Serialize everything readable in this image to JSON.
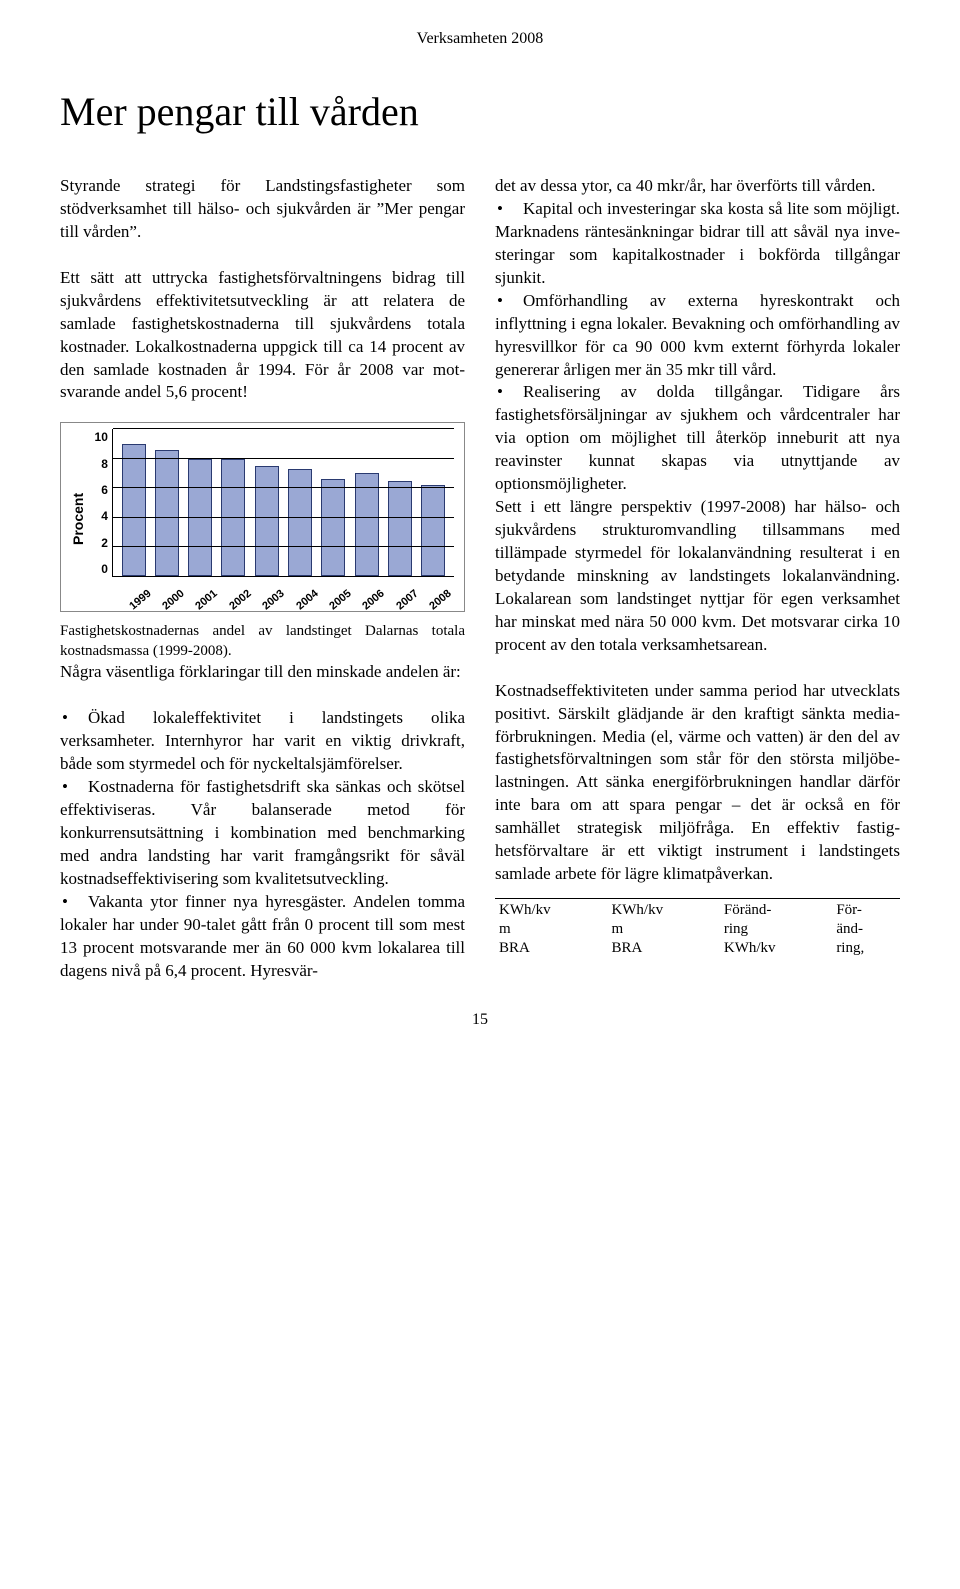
{
  "header": "Verksamheten 2008",
  "title": "Mer pengar till vården",
  "page_number": "15",
  "left": {
    "p1": "Styrande strategi för Landstingsfastighe­ter som stödverksamhet till hälso- och sjukvården är ”Mer pengar till vården”.",
    "p2": "Ett sätt att uttrycka fastighetsförvalt­ningens bidrag till sjukvårdens effektivi­tetsutveckling är att relatera de samlade fastighetskostnaderna till sjukvårdens totala kostnader. Lokalkostnaderna upp­gick till ca 14 procent av den samlade kostnaden år 1994. För år 2008 var mot­svarande andel 5,6 procent!",
    "caption": "Fastighetskostnadernas andel av landstinget Dalarnas totala kostnadsmassa (1999-2008).",
    "p3": "Några väsentliga förklaringar till den minskade andelen är:",
    "b1": "Ökad lokaleffektivitet i landstingets olika verksamheter. Internhyror har varit en viktig drivkraft, både som styrmedel och för nyckeltalsjämförelser.",
    "b2": "Kostnaderna för fastighetsdrift ska sänkas och skötsel effektiviseras. Vår ba­lanserade metod för konkurrensutsättning i kombination med benchmarking med and­ra landsting har varit framgångsrikt för såväl kostnadseffektivisering som kvali­tetsutveckling.",
    "b3_a": "Vakanta ytor finner nya hyresgäster.",
    "b3_b": "Andelen tomma lokaler har under 90-talet gått från 0 procent till som mest 13 procent motsvarande mer än 60 000 kvm lokalarea till dagens nivå på 6,4 procent. Hyresvär-"
  },
  "right": {
    "cont": "det av dessa ytor, ca 40 mkr/år, har över­förts till vården.",
    "b1": "Kapital och investeringar ska kosta så lite som möjligt. Marknadens ränte­sänkningar bidrar till att såväl nya inve­steringar som kapitalkostnader i bokförda tillgångar sjunkit.",
    "b2": "Omförhandling av externa hyreskon­trakt och inflyttning i egna lokaler. Bevak­ning och omförhandling av hyresvillkor för ca 90 000 kvm externt förhyrda lokaler genererar årligen mer än 35 mkr till vård.",
    "b3_a": "Realisering av dolda tillgångar.",
    "b3_b": "Tidigare års fastighetsförsäljningar av sjukhem och vårdcentraler har via option om möjlighet till återköp inneburit att nya reavinster kunnat skapas via utnytt­jande av optionsmöjligheter.",
    "b3_c": "Sett i ett längre perspektiv (1997-2008) har hälso- och sjukvårdens strukturom­vandling tillsammans med tillämpade styrmedel för lokalanvändning resulterat i en betydande minskning av landsting­ets lokalanvändning. Lokalarean som landstinget nyttjar för egen verksamhet har minskat med nära 50 000 kvm. Det motsvarar cirka 10 procent av den totala verksamhetsarean.",
    "p2": "Kostnadseffektiviteten under samma period har utvecklats positivt. Särskilt glädjande är den kraftigt sänkta media­förbrukningen. Media (el, värme och vatten) är den del av fastighetsförvalt­ningen som står för den största miljöbe­lastningen. Att sänka energiförbrukning­en handlar därför inte bara om att spara pengar – det är också en för samhället strategisk miljöfråga. En effektiv fastig­hetsförvaltare är ett viktigt instrument i landstingets samlade arbete för lägre klimatpåverkan."
  },
  "table": {
    "h1a": "KWh/kv",
    "h1b": "m",
    "h1c": "BRA",
    "h2a": "KWh/kv",
    "h2b": "m",
    "h2c": "BRA",
    "h3a": "Föränd-",
    "h3b": "ring",
    "h3c": "KWh/kv",
    "h4a": "För-",
    "h4b": "änd-",
    "h4c": "ring,"
  },
  "chart": {
    "type": "bar",
    "ylabel": "Procent",
    "ymax": 10,
    "ytick_step": 2,
    "yticks": [
      "0",
      "2",
      "4",
      "6",
      "8",
      "10"
    ],
    "categories": [
      "1999",
      "2000",
      "2001",
      "2002",
      "2003",
      "2004",
      "2005",
      "2006",
      "2007",
      "2008"
    ],
    "values": [
      9.0,
      8.6,
      8.0,
      8.0,
      7.5,
      7.3,
      6.6,
      7.0,
      6.5,
      6.2
    ],
    "bar_fill": "#9aa8d4",
    "bar_border": "#2a3a70",
    "grid_color": "#000000",
    "background": "#ffffff",
    "label_font": "Arial",
    "label_fontsize_pt": 10,
    "label_weight": "bold"
  }
}
